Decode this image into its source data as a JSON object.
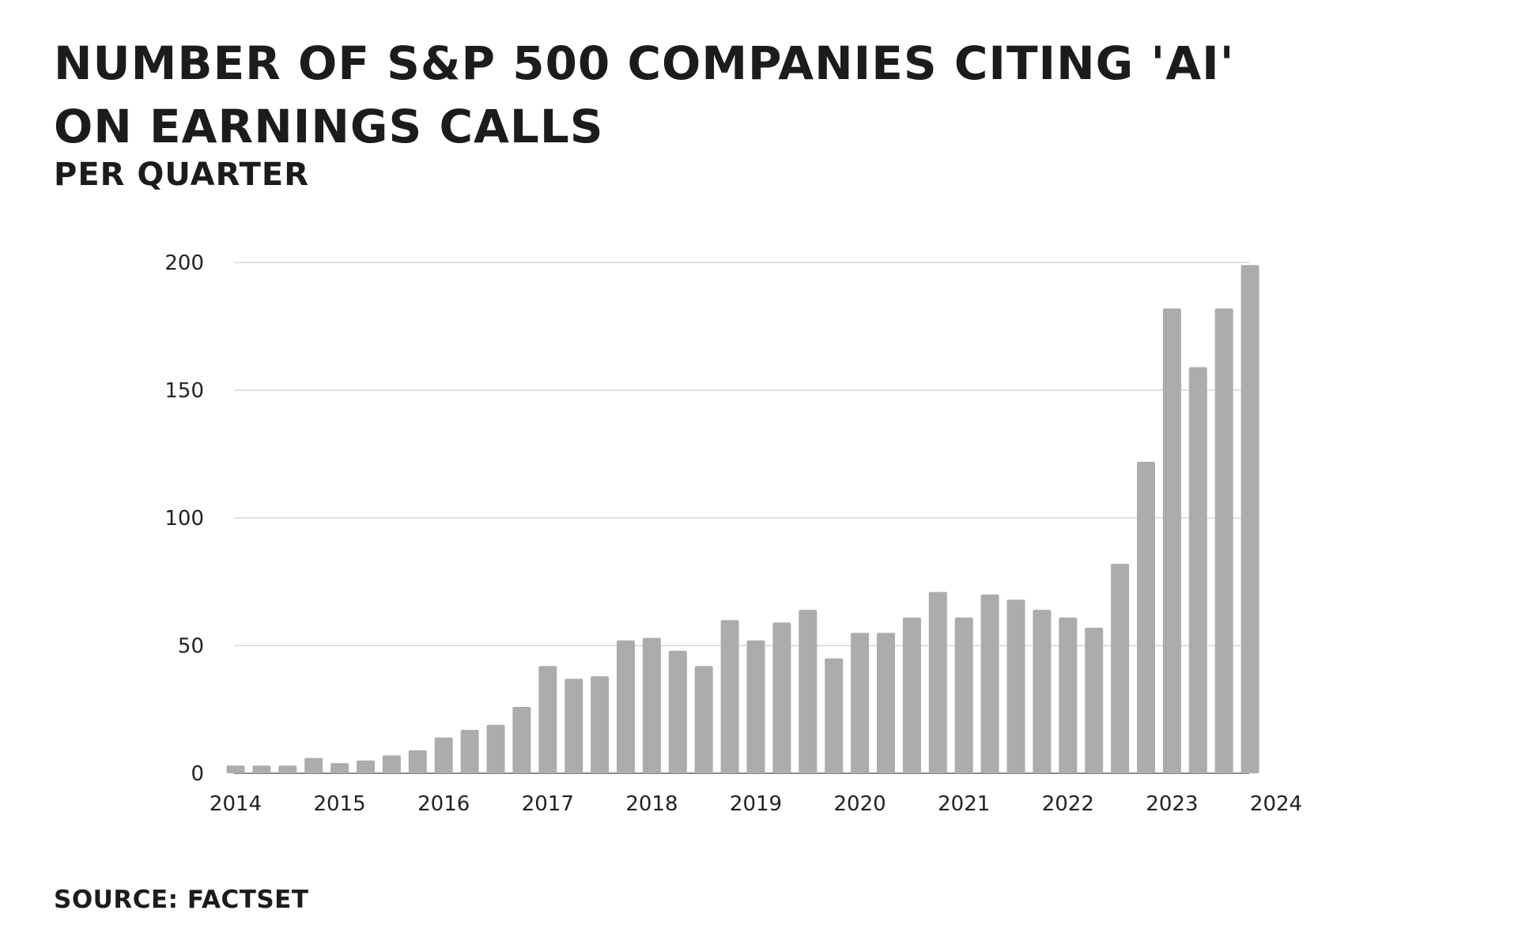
{
  "title": "Number of S&P 500 companies citing 'AI' on earnings calls",
  "subtitle": "Per quarter",
  "source": "Source: FactSet",
  "colors": {
    "bar": "#acacac",
    "grid": "#d6d6d6",
    "axis": "#8a8a8a",
    "text": "#222222"
  },
  "chart_data": {
    "type": "bar",
    "title": "Number of S&P 500 companies citing 'AI' on earnings calls",
    "subtitle": "Per quarter",
    "xlabel": "",
    "ylabel": "",
    "ylim": [
      0,
      200
    ],
    "yticks": [
      0,
      50,
      100,
      150,
      200
    ],
    "xticks": [
      "2014",
      "2015",
      "2016",
      "2017",
      "2018",
      "2019",
      "2020",
      "2021",
      "2022",
      "2023",
      "2024"
    ],
    "grid": true,
    "legend": "none",
    "categories": [
      "2014 Q1",
      "2014 Q2",
      "2014 Q3",
      "2014 Q4",
      "2015 Q1",
      "2015 Q2",
      "2015 Q3",
      "2015 Q4",
      "2016 Q1",
      "2016 Q2",
      "2016 Q3",
      "2016 Q4",
      "2017 Q1",
      "2017 Q2",
      "2017 Q3",
      "2017 Q4",
      "2018 Q1",
      "2018 Q2",
      "2018 Q3",
      "2018 Q4",
      "2019 Q1",
      "2019 Q2",
      "2019 Q3",
      "2019 Q4",
      "2020 Q1",
      "2020 Q2",
      "2020 Q3",
      "2020 Q4",
      "2021 Q1",
      "2021 Q2",
      "2021 Q3",
      "2021 Q4",
      "2022 Q1",
      "2022 Q2",
      "2022 Q3",
      "2022 Q4",
      "2023 Q1",
      "2023 Q2",
      "2023 Q3",
      "2023 Q4",
      "2024 Q1"
    ],
    "values": [
      3,
      3,
      3,
      6,
      4,
      5,
      7,
      9,
      14,
      17,
      19,
      26,
      42,
      37,
      38,
      52,
      53,
      48,
      42,
      60,
      52,
      59,
      64,
      45,
      55,
      55,
      61,
      71,
      61,
      70,
      68,
      64,
      61,
      57,
      82,
      122,
      182,
      159,
      182,
      199,
      0
    ]
  }
}
